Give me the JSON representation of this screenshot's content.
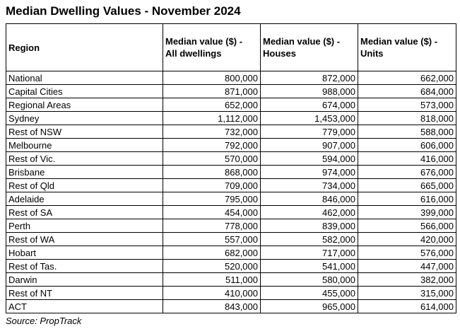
{
  "title": "Median Dwelling Values - November 2024",
  "source_note": "Source: PropTrack",
  "colors": {
    "text": "#000000",
    "border": "#000000",
    "background": "#ffffff"
  },
  "table": {
    "header": {
      "region": "Region",
      "all_dwellings": {
        "line1": "Median value ($) -",
        "line2": "All dwellings"
      },
      "houses": {
        "line1": "Median value ($) -",
        "line2": "Houses"
      },
      "units": {
        "line1": "Median value ($) -",
        "line2": "Units"
      }
    },
    "rows": [
      {
        "region": "National",
        "all_dwellings": "800,000",
        "houses": "872,000",
        "units": "662,000"
      },
      {
        "region": "Capital Cities",
        "all_dwellings": "871,000",
        "houses": "988,000",
        "units": "684,000"
      },
      {
        "region": "Regional Areas",
        "all_dwellings": "652,000",
        "houses": "674,000",
        "units": "573,000"
      },
      {
        "region": "Sydney",
        "all_dwellings": "1,112,000",
        "houses": "1,453,000",
        "units": "818,000"
      },
      {
        "region": "Rest of NSW",
        "all_dwellings": "732,000",
        "houses": "779,000",
        "units": "588,000"
      },
      {
        "region": "Melbourne",
        "all_dwellings": "792,000",
        "houses": "907,000",
        "units": "606,000"
      },
      {
        "region": "Rest of Vic.",
        "all_dwellings": "570,000",
        "houses": "594,000",
        "units": "416,000"
      },
      {
        "region": "Brisbane",
        "all_dwellings": "868,000",
        "houses": "974,000",
        "units": "676,000"
      },
      {
        "region": "Rest of Qld",
        "all_dwellings": "709,000",
        "houses": "734,000",
        "units": "665,000"
      },
      {
        "region": "Adelaide",
        "all_dwellings": "795,000",
        "houses": "846,000",
        "units": "616,000"
      },
      {
        "region": "Rest of SA",
        "all_dwellings": "454,000",
        "houses": "462,000",
        "units": "399,000"
      },
      {
        "region": "Perth",
        "all_dwellings": "778,000",
        "houses": "839,000",
        "units": "566,000"
      },
      {
        "region": "Rest of WA",
        "all_dwellings": "557,000",
        "houses": "582,000",
        "units": "420,000"
      },
      {
        "region": "Hobart",
        "all_dwellings": "682,000",
        "houses": "717,000",
        "units": "576,000"
      },
      {
        "region": "Rest of Tas.",
        "all_dwellings": "520,000",
        "houses": "541,000",
        "units": "447,000"
      },
      {
        "region": "Darwin",
        "all_dwellings": "511,000",
        "houses": "580,000",
        "units": "382,000"
      },
      {
        "region": "Rest of NT",
        "all_dwellings": "410,000",
        "houses": "455,000",
        "units": "315,000"
      },
      {
        "region": "ACT",
        "all_dwellings": "843,000",
        "houses": "965,000",
        "units": "614,000"
      }
    ]
  },
  "chart_data": {
    "type": "table",
    "title": "Median Dwelling Values - November 2024",
    "columns": [
      "Region",
      "Median value ($) - All dwellings",
      "Median value ($) - Houses",
      "Median value ($) - Units"
    ],
    "rows": [
      [
        "National",
        800000,
        872000,
        662000
      ],
      [
        "Capital Cities",
        871000,
        988000,
        684000
      ],
      [
        "Regional Areas",
        652000,
        674000,
        573000
      ],
      [
        "Sydney",
        1112000,
        1453000,
        818000
      ],
      [
        "Rest of NSW",
        732000,
        779000,
        588000
      ],
      [
        "Melbourne",
        792000,
        907000,
        606000
      ],
      [
        "Rest of Vic.",
        570000,
        594000,
        416000
      ],
      [
        "Brisbane",
        868000,
        974000,
        676000
      ],
      [
        "Rest of Qld",
        709000,
        734000,
        665000
      ],
      [
        "Adelaide",
        795000,
        846000,
        616000
      ],
      [
        "Rest of SA",
        454000,
        462000,
        399000
      ],
      [
        "Perth",
        778000,
        839000,
        566000
      ],
      [
        "Rest of WA",
        557000,
        582000,
        420000
      ],
      [
        "Hobart",
        682000,
        717000,
        576000
      ],
      [
        "Rest of Tas.",
        520000,
        541000,
        447000
      ],
      [
        "Darwin",
        511000,
        580000,
        382000
      ],
      [
        "Rest of NT",
        410000,
        455000,
        315000
      ],
      [
        "ACT",
        843000,
        965000,
        614000
      ]
    ],
    "source": "Source: PropTrack"
  }
}
